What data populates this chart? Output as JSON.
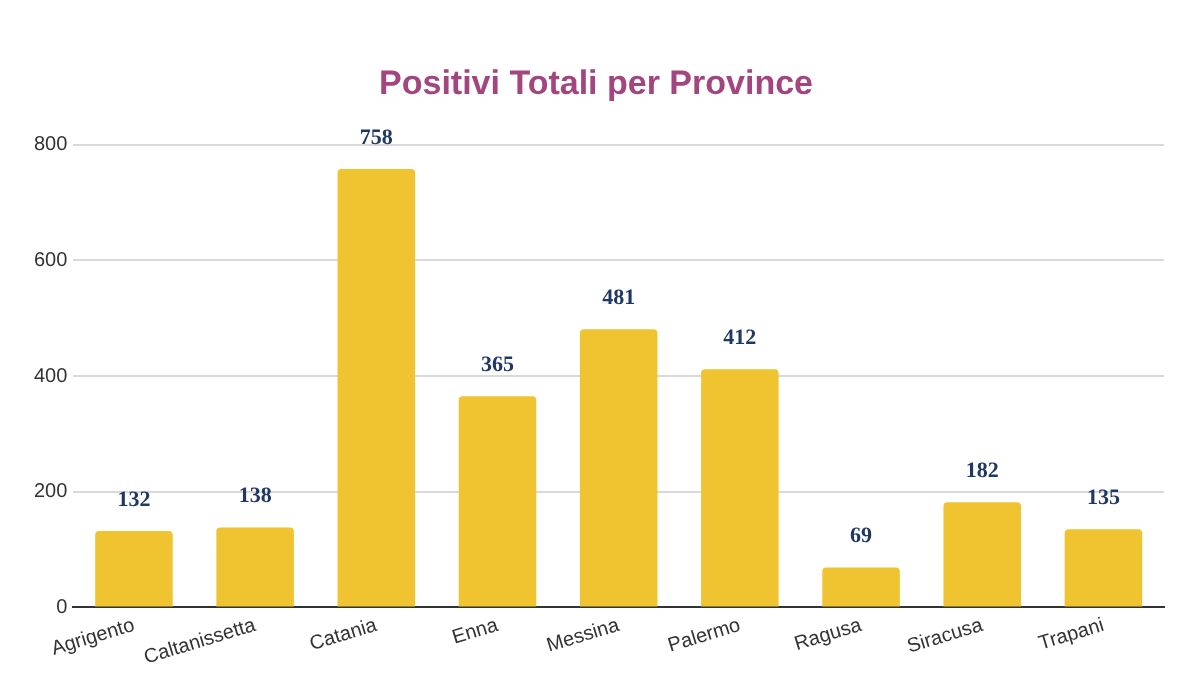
{
  "chart_data": {
    "type": "bar",
    "title": "Positivi Totali per Province",
    "categories": [
      "Agrigento",
      "Caltanissetta",
      "Catania",
      "Enna",
      "Messina",
      "Palermo",
      "Ragusa",
      "Siracusa",
      "Trapani"
    ],
    "values": [
      132,
      138,
      758,
      365,
      481,
      412,
      69,
      182,
      135
    ],
    "color": "#f0c430",
    "ylim": [
      0,
      800
    ],
    "yticks": [
      0,
      200,
      400,
      600,
      800
    ],
    "grid": "y",
    "data_labels": true,
    "legend": false
  }
}
